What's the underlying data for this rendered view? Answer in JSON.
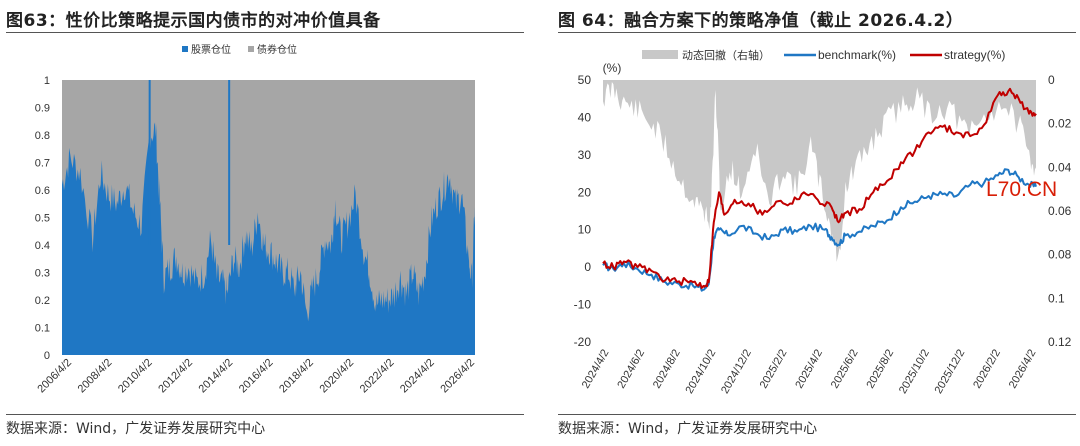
{
  "left": {
    "title": "图63：性价比策略提示国内债市的对冲价值具备",
    "source": "数据来源：Wind，广发证券发展研究中心"
  },
  "right": {
    "title": "图 64：融合方案下的策略净值（截止 2026.4.2）",
    "source": "数据来源：Wind，广发证券发展研究中心",
    "watermark": "L70.CN"
  },
  "chart_data": [
    {
      "type": "area",
      "stacked": true,
      "legend_position": "top-center",
      "series": [
        {
          "name": "股票仓位",
          "color": "#1f77c4",
          "points": [
            [
              2006.0,
              0.62
            ],
            [
              2006.4,
              0.72
            ],
            [
              2006.9,
              0.66
            ],
            [
              2007.5,
              0.42
            ],
            [
              2007.9,
              0.66
            ],
            [
              2008.3,
              0.58
            ],
            [
              2008.7,
              0.55
            ],
            [
              2009.1,
              0.62
            ],
            [
              2009.5,
              0.52
            ],
            [
              2009.9,
              0.47
            ],
            [
              2010.3,
              0.8
            ],
            [
              2010.6,
              0.82
            ],
            [
              2010.8,
              0.55
            ],
            [
              2011.0,
              0.28
            ],
            [
              2011.3,
              0.32
            ],
            [
              2011.6,
              0.36
            ],
            [
              2011.9,
              0.3
            ],
            [
              2012.2,
              0.32
            ],
            [
              2012.6,
              0.26
            ],
            [
              2013.0,
              0.3
            ],
            [
              2013.3,
              0.42
            ],
            [
              2013.6,
              0.28
            ],
            [
              2013.9,
              0.26
            ],
            [
              2014.1,
              0.22
            ],
            [
              2014.4,
              0.35
            ],
            [
              2014.7,
              0.32
            ],
            [
              2015.0,
              0.44
            ],
            [
              2015.3,
              0.38
            ],
            [
              2015.6,
              0.52
            ],
            [
              2015.9,
              0.4
            ],
            [
              2016.2,
              0.38
            ],
            [
              2016.5,
              0.34
            ],
            [
              2016.8,
              0.3
            ],
            [
              2017.1,
              0.3
            ],
            [
              2017.4,
              0.24
            ],
            [
              2017.7,
              0.3
            ],
            [
              2018.0,
              0.15
            ],
            [
              2018.3,
              0.24
            ],
            [
              2018.6,
              0.3
            ],
            [
              2018.9,
              0.42
            ],
            [
              2019.2,
              0.4
            ],
            [
              2019.4,
              0.55
            ],
            [
              2019.7,
              0.42
            ],
            [
              2020.0,
              0.48
            ],
            [
              2020.4,
              0.58
            ],
            [
              2020.8,
              0.38
            ],
            [
              2021.1,
              0.3
            ],
            [
              2021.4,
              0.18
            ],
            [
              2021.7,
              0.2
            ],
            [
              2022.0,
              0.2
            ],
            [
              2022.3,
              0.22
            ],
            [
              2022.6,
              0.28
            ],
            [
              2022.9,
              0.22
            ],
            [
              2023.2,
              0.3
            ],
            [
              2023.5,
              0.22
            ],
            [
              2023.8,
              0.3
            ],
            [
              2024.1,
              0.48
            ],
            [
              2024.4,
              0.55
            ],
            [
              2024.7,
              0.6
            ],
            [
              2025.0,
              0.66
            ],
            [
              2025.3,
              0.55
            ],
            [
              2025.6,
              0.58
            ],
            [
              2025.9,
              0.38
            ],
            [
              2026.1,
              0.27
            ],
            [
              2026.26,
              0.54
            ]
          ]
        },
        {
          "name": "债券仓位",
          "color": "#a6a6a6"
        }
      ],
      "x_ticks": [
        "2006/4/2",
        "2008/4/2",
        "2010/4/2",
        "2012/4/2",
        "2014/4/2",
        "2016/4/2",
        "2018/4/2",
        "2020/4/2",
        "2022/4/2",
        "2024/4/2",
        "2026/4/2"
      ],
      "y_ticks": [
        "0",
        "0.1",
        "0.2",
        "0.3",
        "0.4",
        "0.5",
        "0.6",
        "0.7",
        "0.8",
        "0.9",
        "1"
      ],
      "ylim": [
        0,
        1
      ]
    },
    {
      "type": "line",
      "legend_position": "top",
      "y_unit_label": "(%)",
      "ylim": [
        -20,
        50
      ],
      "y2lim": [
        0.12,
        0
      ],
      "y2_inverted": true,
      "y_ticks": [
        "-20",
        "-10",
        "0",
        "10",
        "20",
        "30",
        "40",
        "50"
      ],
      "y2_ticks": [
        "0.12",
        "0.1",
        "0.08",
        "0.06",
        "0.04",
        "0.02",
        "0"
      ],
      "x_ticks": [
        "2024/4/2",
        "2024/6/2",
        "2024/8/2",
        "2024/10/2",
        "2024/12/2",
        "2025/2/2",
        "2025/4/2",
        "2025/6/2",
        "2025/8/2",
        "2025/10/2",
        "2025/12/2",
        "2026/2/2",
        "2026/4/2"
      ],
      "series": [
        {
          "name": "动态回撤（右轴）",
          "color": "#c8c8c8",
          "axis": "right",
          "points": [
            [
              0,
              0.008
            ],
            [
              0.3,
              0.004
            ],
            [
              0.6,
              0.01
            ],
            [
              1.0,
              0.014
            ],
            [
              1.4,
              0.02
            ],
            [
              1.8,
              0.03
            ],
            [
              2.2,
              0.045
            ],
            [
              2.6,
              0.055
            ],
            [
              2.9,
              0.06
            ],
            [
              3.1,
              0.064
            ],
            [
              3.25,
              0.005
            ],
            [
              3.4,
              0.06
            ],
            [
              3.7,
              0.04
            ],
            [
              4.0,
              0.052
            ],
            [
              4.4,
              0.03
            ],
            [
              4.8,
              0.058
            ],
            [
              5.2,
              0.04
            ],
            [
              5.6,
              0.05
            ],
            [
              6.0,
              0.03
            ],
            [
              6.3,
              0.05
            ],
            [
              6.6,
              0.07
            ],
            [
              6.8,
              0.083
            ],
            [
              7.0,
              0.05
            ],
            [
              7.3,
              0.04
            ],
            [
              7.7,
              0.03
            ],
            [
              8.1,
              0.02
            ],
            [
              8.6,
              0.012
            ],
            [
              9.0,
              0.008
            ],
            [
              9.5,
              0.015
            ],
            [
              10.0,
              0.012
            ],
            [
              10.5,
              0.025
            ],
            [
              11.0,
              0.018
            ],
            [
              11.5,
              0.01
            ],
            [
              12.0,
              0.02
            ],
            [
              12.3,
              0.035
            ],
            [
              12.5,
              0.04
            ]
          ]
        },
        {
          "name": "benchmark(%)",
          "color": "#1f77c4",
          "axis": "left",
          "points": [
            [
              0,
              0.5
            ],
            [
              0.3,
              -0.5
            ],
            [
              0.6,
              1.0
            ],
            [
              1.0,
              -0.5
            ],
            [
              1.4,
              -2.0
            ],
            [
              1.8,
              -4.0
            ],
            [
              2.2,
              -4.5
            ],
            [
              2.6,
              -5.0
            ],
            [
              2.9,
              -6.0
            ],
            [
              3.05,
              -4.5
            ],
            [
              3.2,
              8.0
            ],
            [
              3.35,
              10.0
            ],
            [
              3.6,
              8.5
            ],
            [
              4.0,
              11.0
            ],
            [
              4.4,
              9.0
            ],
            [
              4.8,
              7.5
            ],
            [
              5.2,
              10.0
            ],
            [
              5.6,
              9.5
            ],
            [
              6.0,
              11.0
            ],
            [
              6.4,
              10.0
            ],
            [
              6.6,
              8.0
            ],
            [
              6.8,
              6.0
            ],
            [
              7.0,
              8.5
            ],
            [
              7.4,
              9.5
            ],
            [
              7.8,
              11.0
            ],
            [
              8.2,
              12.5
            ],
            [
              8.6,
              16.0
            ],
            [
              9.0,
              17.5
            ],
            [
              9.4,
              19.0
            ],
            [
              9.8,
              19.5
            ],
            [
              10.2,
              19.0
            ],
            [
              10.6,
              22.0
            ],
            [
              11.0,
              22.5
            ],
            [
              11.4,
              24.5
            ],
            [
              11.7,
              26.0
            ],
            [
              12.0,
              24.0
            ],
            [
              12.3,
              22.0
            ],
            [
              12.5,
              21.5
            ]
          ]
        },
        {
          "name": "strategy(%)",
          "color": "#c00000",
          "axis": "left",
          "points": [
            [
              0,
              1.0
            ],
            [
              0.3,
              0.0
            ],
            [
              0.6,
              1.5
            ],
            [
              1.0,
              0.0
            ],
            [
              1.4,
              -1.0
            ],
            [
              1.8,
              -3.5
            ],
            [
              2.2,
              -3.8
            ],
            [
              2.6,
              -4.0
            ],
            [
              2.9,
              -5.0
            ],
            [
              3.05,
              -4.0
            ],
            [
              3.2,
              12.0
            ],
            [
              3.35,
              20.0
            ],
            [
              3.5,
              14.0
            ],
            [
              3.8,
              18.0
            ],
            [
              4.2,
              17.0
            ],
            [
              4.6,
              14.0
            ],
            [
              5.0,
              17.5
            ],
            [
              5.4,
              17.0
            ],
            [
              5.8,
              20.0
            ],
            [
              6.2,
              18.0
            ],
            [
              6.6,
              16.0
            ],
            [
              6.8,
              12.0
            ],
            [
              7.0,
              14.5
            ],
            [
              7.4,
              15.5
            ],
            [
              7.8,
              20.0
            ],
            [
              8.2,
              23.0
            ],
            [
              8.6,
              28.0
            ],
            [
              9.0,
              31.0
            ],
            [
              9.4,
              36.0
            ],
            [
              9.8,
              37.5
            ],
            [
              10.2,
              36.0
            ],
            [
              10.6,
              35.0
            ],
            [
              11.0,
              38.0
            ],
            [
              11.4,
              46.0
            ],
            [
              11.7,
              47.0
            ],
            [
              12.0,
              45.0
            ],
            [
              12.3,
              41.0
            ],
            [
              12.5,
              41.0
            ]
          ]
        }
      ]
    }
  ]
}
